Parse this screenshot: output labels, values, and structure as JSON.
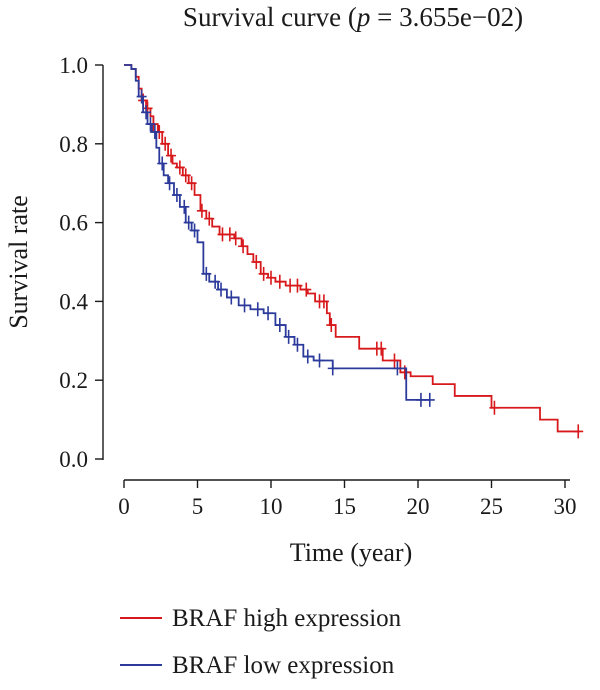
{
  "chart_data": {
    "type": "line",
    "title": "Survival curve (p = 3.655e−02)",
    "title_parts": {
      "prefix": "Survival curve (",
      "p_symbol": "p",
      "suffix": " = 3.655e−02)"
    },
    "xlabel": "Time (year)",
    "ylabel": "Survival rate",
    "xlim": [
      0,
      31
    ],
    "ylim": [
      0,
      1
    ],
    "xticks": [
      0,
      5,
      10,
      15,
      20,
      25,
      30
    ],
    "yticks": [
      0.0,
      0.2,
      0.4,
      0.6,
      0.8,
      1.0
    ],
    "ytick_labels": [
      "0.0",
      "0.2",
      "0.4",
      "0.6",
      "0.8",
      "1.0"
    ],
    "grid": false,
    "legend_position": "bottom",
    "series": [
      {
        "name": "BRAF high expression",
        "color": "#d7191c",
        "steps": [
          [
            0,
            1.0
          ],
          [
            0.5,
            0.99
          ],
          [
            0.8,
            0.97
          ],
          [
            1.0,
            0.94
          ],
          [
            1.2,
            0.91
          ],
          [
            1.5,
            0.89
          ],
          [
            1.8,
            0.87
          ],
          [
            2.0,
            0.85
          ],
          [
            2.3,
            0.83
          ],
          [
            2.6,
            0.8
          ],
          [
            3.0,
            0.77
          ],
          [
            3.3,
            0.75
          ],
          [
            3.6,
            0.74
          ],
          [
            4.0,
            0.72
          ],
          [
            4.4,
            0.7
          ],
          [
            4.8,
            0.67
          ],
          [
            5.2,
            0.63
          ],
          [
            5.6,
            0.61
          ],
          [
            6.0,
            0.59
          ],
          [
            6.5,
            0.57
          ],
          [
            7.5,
            0.56
          ],
          [
            8.0,
            0.54
          ],
          [
            8.4,
            0.52
          ],
          [
            8.8,
            0.5
          ],
          [
            9.3,
            0.47
          ],
          [
            9.8,
            0.46
          ],
          [
            10.3,
            0.45
          ],
          [
            11.0,
            0.44
          ],
          [
            12.0,
            0.43
          ],
          [
            12.5,
            0.42
          ],
          [
            13.0,
            0.4
          ],
          [
            13.8,
            0.37
          ],
          [
            14.0,
            0.34
          ],
          [
            14.4,
            0.31
          ],
          [
            16.0,
            0.28
          ],
          [
            17.6,
            0.25
          ],
          [
            18.8,
            0.22
          ],
          [
            19.5,
            0.21
          ],
          [
            21.0,
            0.19
          ],
          [
            22.5,
            0.16
          ],
          [
            25.0,
            0.13
          ],
          [
            28.3,
            0.1
          ],
          [
            29.5,
            0.07
          ],
          [
            31.0,
            0.07
          ]
        ],
        "censor_x": [
          1.3,
          1.6,
          2.0,
          2.4,
          2.8,
          3.2,
          3.8,
          4.2,
          4.6,
          5.3,
          5.8,
          6.7,
          7.2,
          7.6,
          8.1,
          9.0,
          9.5,
          10.0,
          10.6,
          11.3,
          11.8,
          12.4,
          13.3,
          13.6,
          14.1,
          17.2,
          17.5,
          18.4,
          19.1,
          25.2,
          30.9
        ]
      },
      {
        "name": "BRAF low expression",
        "color": "#2b3a9b",
        "steps": [
          [
            0,
            1.0
          ],
          [
            0.5,
            0.99
          ],
          [
            0.8,
            0.96
          ],
          [
            1.0,
            0.92
          ],
          [
            1.3,
            0.88
          ],
          [
            1.6,
            0.85
          ],
          [
            1.9,
            0.83
          ],
          [
            2.2,
            0.79
          ],
          [
            2.4,
            0.75
          ],
          [
            2.7,
            0.72
          ],
          [
            3.0,
            0.7
          ],
          [
            3.4,
            0.67
          ],
          [
            3.8,
            0.64
          ],
          [
            4.2,
            0.6
          ],
          [
            4.6,
            0.58
          ],
          [
            5.0,
            0.55
          ],
          [
            5.4,
            0.47
          ],
          [
            5.8,
            0.45
          ],
          [
            6.4,
            0.43
          ],
          [
            7.0,
            0.41
          ],
          [
            7.8,
            0.39
          ],
          [
            8.6,
            0.38
          ],
          [
            9.5,
            0.37
          ],
          [
            10.3,
            0.34
          ],
          [
            11.0,
            0.31
          ],
          [
            11.6,
            0.29
          ],
          [
            12.2,
            0.26
          ],
          [
            12.9,
            0.25
          ],
          [
            14.2,
            0.23
          ],
          [
            18.0,
            0.23
          ],
          [
            19.2,
            0.15
          ],
          [
            20.8,
            0.15
          ]
        ],
        "censor_x": [
          1.2,
          1.5,
          1.8,
          2.1,
          2.6,
          3.1,
          3.6,
          4.1,
          4.4,
          4.8,
          5.6,
          6.2,
          6.6,
          7.3,
          8.2,
          9.1,
          9.8,
          10.6,
          11.2,
          11.8,
          12.5,
          13.3,
          14.2,
          18.6,
          20.2,
          20.8
        ]
      }
    ]
  }
}
